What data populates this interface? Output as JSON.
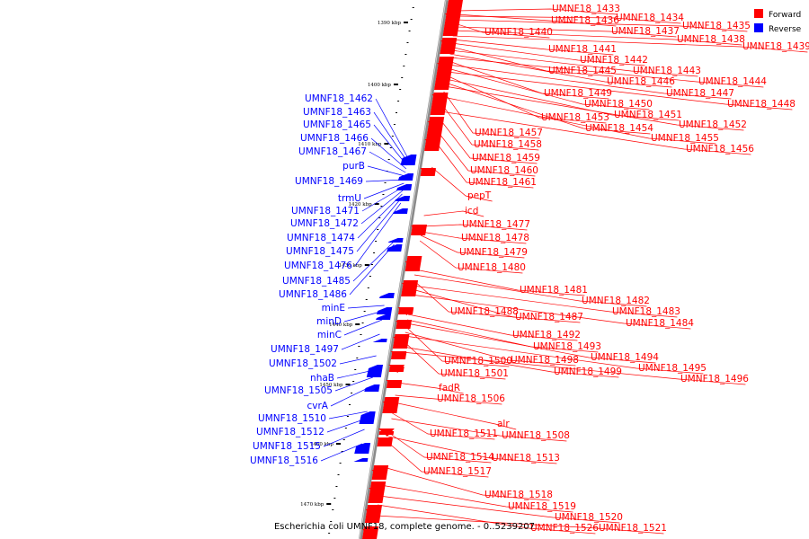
{
  "caption": "Escherichia coli UMNF18, complete genome. - 0..5239207",
  "legend": [
    {
      "label": "Forward",
      "color": "#ff0000"
    },
    {
      "label": "Reverse",
      "color": "#0000ff"
    }
  ],
  "colors": {
    "forward": "#ff0000",
    "reverse": "#0000ff",
    "backbone": "#888888"
  },
  "axis": {
    "unit": "kbp",
    "ticks_kbp": [
      1390,
      1400,
      1410,
      1420,
      1430,
      1440,
      1450,
      1460,
      1470
    ]
  },
  "forward_labels": [
    "UMNF18_1433",
    "UMNF18_1436",
    "UMNF18_1434",
    "UMNF18_1435",
    "UMNF18_1440",
    "UMNF18_1437",
    "UMNF18_1438",
    "UMNF18_1439",
    "UMNF18_1441",
    "UMNF18_1442",
    "UMNF18_1445",
    "UMNF18_1443",
    "UMNF18_1446",
    "UMNF18_1444",
    "UMNF18_1449",
    "UMNF18_1447",
    "UMNF18_1450",
    "UMNF18_1448",
    "UMNF18_1453",
    "UMNF18_1451",
    "UMNF18_1454",
    "UMNF18_1452",
    "UMNF18_1457",
    "UMNF18_1455",
    "UMNF18_1458",
    "UMNF18_1456",
    "UMNF18_1459",
    "UMNF18_1460",
    "UMNF18_1461",
    "pepT",
    "icd",
    "UMNF18_1477",
    "UMNF18_1478",
    "UMNF18_1479",
    "UMNF18_1480",
    "UMNF18_1481",
    "UMNF18_1482",
    "UMNF18_1488",
    "UMNF18_1483",
    "UMNF18_1487",
    "UMNF18_1484",
    "UMNF18_1492",
    "UMNF18_1493",
    "UMNF18_1494",
    "UMNF18_1500",
    "UMNF18_1498",
    "UMNF18_1495",
    "UMNF18_1501",
    "UMNF18_1499",
    "UMNF18_1496",
    "fadR",
    "UMNF18_1506",
    "alr",
    "UMNF18_1511",
    "UMNF18_1508",
    "UMNF18_1514",
    "UMNF18_1513",
    "UMNF18_1517",
    "UMNF18_1518",
    "UMNF18_1519",
    "UMNF18_1520",
    "UMNF18_1526",
    "UMNF18_1521"
  ],
  "reverse_labels": [
    "UMNF18_1462",
    "UMNF18_1463",
    "UMNF18_1465",
    "UMNF18_1466",
    "UMNF18_1467",
    "purB",
    "UMNF18_1469",
    "trmU",
    "UMNF18_1471",
    "UMNF18_1472",
    "UMNF18_1474",
    "UMNF18_1475",
    "UMNF18_1476",
    "UMNF18_1485",
    "UMNF18_1486",
    "minE",
    "minD",
    "minC",
    "UMNF18_1497",
    "UMNF18_1502",
    "nhaB",
    "UMNF18_1505",
    "cvrA",
    "UMNF18_1510",
    "UMNF18_1512",
    "UMNF18_1515",
    "UMNF18_1516"
  ]
}
